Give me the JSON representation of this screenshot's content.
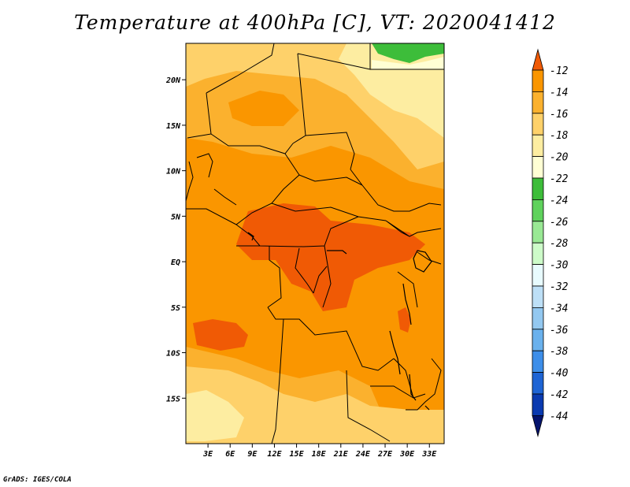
{
  "title": "Temperature at 400hPa [C], VT: 2020041412",
  "credit": "GrADS: IGES/COLA",
  "map": {
    "lon_range": [
      0,
      35
    ],
    "lat_range": [
      -20,
      24
    ],
    "x_ticks": [
      {
        "value": 3,
        "label": "3E"
      },
      {
        "value": 6,
        "label": "6E"
      },
      {
        "value": 9,
        "label": "9E"
      },
      {
        "value": 12,
        "label": "12E"
      },
      {
        "value": 15,
        "label": "15E"
      },
      {
        "value": 18,
        "label": "18E"
      },
      {
        "value": 21,
        "label": "21E"
      },
      {
        "value": 24,
        "label": "24E"
      },
      {
        "value": 27,
        "label": "27E"
      },
      {
        "value": 30,
        "label": "30E"
      },
      {
        "value": 33,
        "label": "33E"
      }
    ],
    "y_ticks": [
      {
        "value": 20,
        "label": "20N"
      },
      {
        "value": 15,
        "label": "15N"
      },
      {
        "value": 10,
        "label": "10N"
      },
      {
        "value": 5,
        "label": "5N"
      },
      {
        "value": 0,
        "label": "EQ"
      },
      {
        "value": -5,
        "label": "5S"
      },
      {
        "value": -10,
        "label": "10S"
      },
      {
        "value": -15,
        "label": "15S"
      }
    ]
  },
  "colorbar": {
    "levels": [
      "-12",
      "-14",
      "-16",
      "-18",
      "-20",
      "-22",
      "-24",
      "-26",
      "-28",
      "-30",
      "-32",
      "-34",
      "-36",
      "-38",
      "-40",
      "-42",
      "-44"
    ],
    "colors": [
      "#f05a05",
      "#fa9600",
      "#fbb12e",
      "#fed16a",
      "#fdeda1",
      "#ffffd4",
      "#3dbd3a",
      "#5fd25c",
      "#99e894",
      "#cdfbc9",
      "#e8fbfe",
      "#bddff6",
      "#93c8f0",
      "#6ab1ed",
      "#3d8ee9",
      "#1e64d4",
      "#0a3ab0",
      "#05146e"
    ]
  }
}
